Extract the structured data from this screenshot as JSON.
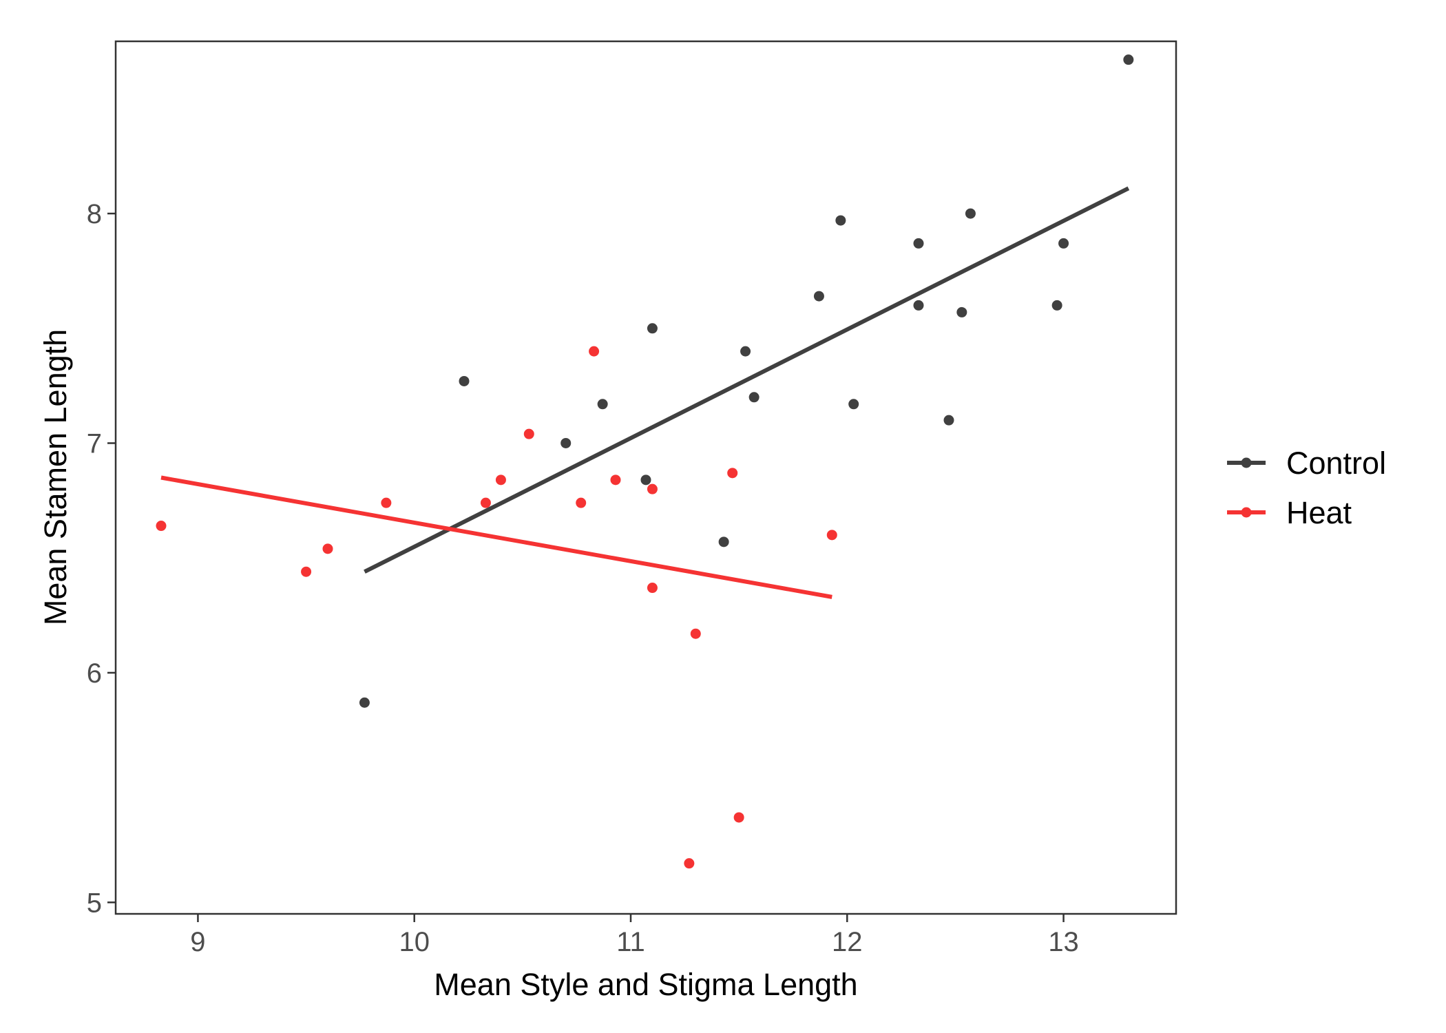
{
  "chart_data": {
    "type": "scatter",
    "xlabel": "Mean Style and Stigma Length",
    "ylabel": "Mean Stamen Length",
    "xlim": [
      8.62,
      13.52
    ],
    "ylim": [
      4.95,
      8.75
    ],
    "x_ticks": [
      9,
      10,
      11,
      12,
      13
    ],
    "y_ticks": [
      5,
      6,
      7,
      8
    ],
    "grid": false,
    "legend_position": "right",
    "series": [
      {
        "name": "Control",
        "color": "#404040",
        "points": [
          [
            9.77,
            5.87
          ],
          [
            10.23,
            7.27
          ],
          [
            10.7,
            7.0
          ],
          [
            10.87,
            7.17
          ],
          [
            11.07,
            6.84
          ],
          [
            11.1,
            7.5
          ],
          [
            11.43,
            6.57
          ],
          [
            11.53,
            7.4
          ],
          [
            11.57,
            7.2
          ],
          [
            11.87,
            7.64
          ],
          [
            11.97,
            7.97
          ],
          [
            12.03,
            7.17
          ],
          [
            12.33,
            7.87
          ],
          [
            12.33,
            7.6
          ],
          [
            12.47,
            7.1
          ],
          [
            12.53,
            7.57
          ],
          [
            12.57,
            8.0
          ],
          [
            12.97,
            7.6
          ],
          [
            13.0,
            7.87
          ],
          [
            13.3,
            8.67
          ]
        ],
        "fit": [
          [
            9.77,
            6.44
          ],
          [
            13.3,
            8.11
          ]
        ]
      },
      {
        "name": "Heat",
        "color": "#f53333",
        "points": [
          [
            8.83,
            6.64
          ],
          [
            9.5,
            6.44
          ],
          [
            9.6,
            6.54
          ],
          [
            9.87,
            6.74
          ],
          [
            10.33,
            6.74
          ],
          [
            10.4,
            6.84
          ],
          [
            10.53,
            7.04
          ],
          [
            10.77,
            6.74
          ],
          [
            10.83,
            7.4
          ],
          [
            10.93,
            6.84
          ],
          [
            11.1,
            6.8
          ],
          [
            11.1,
            6.37
          ],
          [
            11.27,
            5.17
          ],
          [
            11.3,
            6.17
          ],
          [
            11.47,
            6.87
          ],
          [
            11.5,
            5.37
          ],
          [
            11.93,
            6.6
          ]
        ],
        "fit": [
          [
            8.83,
            6.85
          ],
          [
            11.93,
            6.33
          ]
        ]
      }
    ]
  }
}
